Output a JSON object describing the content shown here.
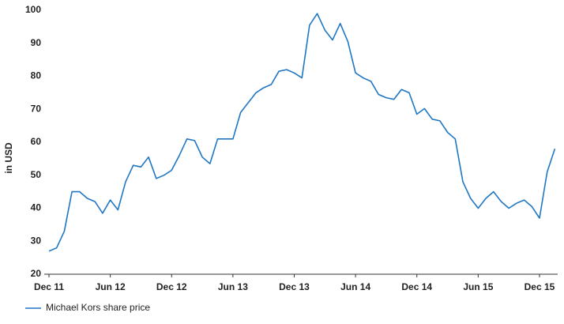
{
  "chart_data": {
    "type": "line",
    "y_label": "in USD",
    "categories": [
      "Dec 11",
      null,
      null,
      null,
      null,
      null,
      null,
      null,
      "Jun 12",
      null,
      null,
      null,
      null,
      null,
      null,
      null,
      "Dec 12",
      null,
      null,
      null,
      null,
      null,
      null,
      null,
      "Jun 13",
      null,
      null,
      null,
      null,
      null,
      null,
      null,
      "Dec 13",
      null,
      null,
      null,
      null,
      null,
      null,
      null,
      "Jun 14",
      null,
      null,
      null,
      null,
      null,
      null,
      null,
      "Dec 14",
      null,
      null,
      null,
      null,
      null,
      null,
      null,
      "Jun 15",
      null,
      null,
      null,
      null,
      null,
      null,
      null,
      "Dec 15",
      null,
      null
    ],
    "series": [
      {
        "name": "Michael Kors share price",
        "color": "#1f77c4",
        "values": [
          27,
          28,
          33,
          45,
          45,
          43,
          42,
          38.5,
          42.5,
          39.5,
          48,
          53,
          52.5,
          55.5,
          49,
          50,
          51.5,
          56,
          61,
          60.5,
          55.5,
          53.5,
          61,
          61,
          61,
          69,
          72,
          75,
          76.5,
          77.5,
          81.5,
          82,
          81,
          79.5,
          95.5,
          99,
          94,
          91,
          96,
          90.5,
          81,
          79.5,
          78.5,
          74.5,
          73.5,
          73,
          76,
          75,
          68.5,
          70.2,
          67,
          66.5,
          63,
          61,
          48,
          43,
          40,
          43,
          45,
          42,
          40,
          41.5,
          42.5,
          40.5,
          37,
          51,
          58
        ]
      }
    ],
    "ylim": [
      20,
      100
    ],
    "yticks": [
      20,
      30,
      40,
      50,
      60,
      70,
      80,
      90,
      100
    ],
    "grid": false,
    "legend": "bottom-left"
  }
}
